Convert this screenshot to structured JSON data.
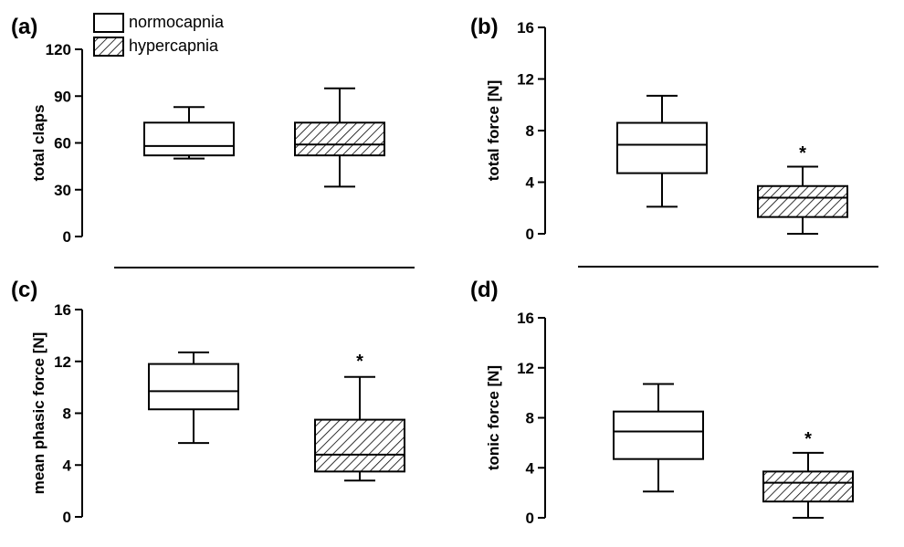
{
  "legend": {
    "normal_label": "normocapnia",
    "hatched_label": "hypercapnia"
  },
  "colors": {
    "ink": "#000000",
    "background": "#ffffff"
  },
  "chart_data": [
    {
      "panel": "(a)",
      "type": "box",
      "ylabel": "total claps",
      "ylim": [
        0,
        120
      ],
      "yticks": [
        0,
        30,
        60,
        90,
        120
      ],
      "series": [
        {
          "name": "normocapnia",
          "min": 50,
          "q1": 52,
          "median": 58,
          "q3": 73,
          "max": 83
        },
        {
          "name": "hypercapnia",
          "min": 32,
          "q1": 52,
          "median": 59,
          "q3": 73,
          "max": 95
        }
      ],
      "significance": ""
    },
    {
      "panel": "(b)",
      "type": "box",
      "ylabel": "total force [N]",
      "ylim": [
        0,
        16
      ],
      "yticks": [
        0,
        4,
        8,
        12,
        16
      ],
      "series": [
        {
          "name": "normocapnia",
          "min": 2.1,
          "q1": 4.7,
          "median": 6.9,
          "q3": 8.6,
          "max": 10.7
        },
        {
          "name": "hypercapnia",
          "min": 0.0,
          "q1": 1.3,
          "median": 2.8,
          "q3": 3.7,
          "max": 5.2
        }
      ],
      "significance": "*"
    },
    {
      "panel": "(c)",
      "type": "box",
      "ylabel": "mean phasic force [N]",
      "ylim": [
        0,
        16
      ],
      "yticks": [
        0,
        4,
        8,
        12,
        16
      ],
      "series": [
        {
          "name": "normocapnia",
          "min": 5.7,
          "q1": 8.3,
          "median": 9.7,
          "q3": 11.8,
          "max": 12.7
        },
        {
          "name": "hypercapnia",
          "min": 2.8,
          "q1": 3.5,
          "median": 4.8,
          "q3": 7.5,
          "max": 10.8
        }
      ],
      "significance": "*"
    },
    {
      "panel": "(d)",
      "type": "box",
      "ylabel": "tonic force [N]",
      "ylim": [
        0,
        16
      ],
      "yticks": [
        0,
        4,
        8,
        12,
        16
      ],
      "series": [
        {
          "name": "normocapnia",
          "min": 2.1,
          "q1": 4.7,
          "median": 6.9,
          "q3": 8.5,
          "max": 10.7
        },
        {
          "name": "hypercapnia",
          "min": 0.0,
          "q1": 1.3,
          "median": 2.8,
          "q3": 3.7,
          "max": 5.2
        }
      ],
      "significance": "*"
    }
  ]
}
